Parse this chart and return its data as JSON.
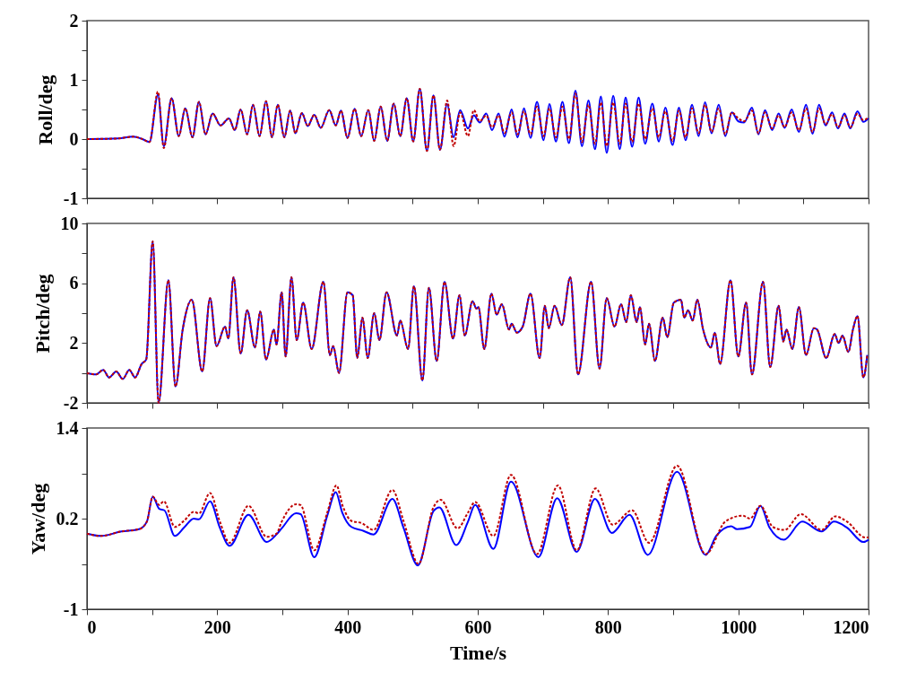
{
  "chart_data": [
    {
      "type": "line",
      "ylabel": "Roll/deg",
      "xlim": [
        0,
        1200
      ],
      "xticks": [
        0,
        100,
        200,
        300,
        400,
        500,
        600,
        700,
        800,
        900,
        1000,
        1100,
        1200
      ],
      "ylim": [
        -1,
        2
      ],
      "yticks": [
        2,
        {
          "value": 1.5,
          "label": null
        },
        1,
        {
          "value": 0.5,
          "label": null
        },
        0,
        {
          "value": -0.5,
          "label": null
        },
        -1
      ],
      "tick_labels": "y",
      "x": [
        0,
        48,
        71,
        85,
        96,
        109,
        118,
        130,
        141,
        151,
        162,
        172,
        182,
        193,
        205,
        218,
        227,
        236,
        246,
        255,
        265,
        275,
        284,
        293,
        303,
        312,
        320,
        330,
        339,
        349,
        359,
        372,
        382,
        390,
        400,
        411,
        421,
        432,
        441,
        451,
        461,
        471,
        481,
        491,
        501,
        511,
        522,
        532,
        542,
        553,
        563,
        573,
        585,
        594,
        603,
        613,
        622,
        632,
        641,
        652,
        661,
        671,
        681,
        691,
        701,
        710,
        720,
        730,
        740,
        750,
        760,
        770,
        780,
        789,
        798,
        808,
        818,
        827,
        837,
        847,
        857,
        868,
        878,
        888,
        899,
        909,
        919,
        929,
        939,
        949,
        959,
        970,
        980,
        990,
        1000,
        1009,
        1021,
        1031,
        1041,
        1052,
        1062,
        1071,
        1082,
        1093,
        1104,
        1114,
        1124,
        1134,
        1144,
        1153,
        1163,
        1172,
        1183,
        1192,
        1200
      ],
      "series": [
        {
          "color": "#0000ff",
          "line_style": "solid",
          "values": [
            0,
            0.01,
            0.04,
            0,
            -0.05,
            0.75,
            -0.12,
            0.69,
            0.05,
            0.52,
            0.03,
            0.63,
            0.08,
            0.43,
            0.23,
            0.35,
            0.15,
            0.5,
            0.08,
            0.58,
            0.05,
            0.64,
            0.03,
            0.58,
            0.03,
            0.48,
            0.1,
            0.44,
            0.22,
            0.41,
            0.19,
            0.49,
            0.23,
            0.48,
            0.02,
            0.51,
            0.05,
            0.49,
            -0.03,
            0.55,
            -0.03,
            0.6,
            0.05,
            0.69,
            -0.04,
            0.85,
            -0.2,
            0.74,
            -0.18,
            0.59,
            0.03,
            0.49,
            0.18,
            0.4,
            0.28,
            0.43,
            0.15,
            0.43,
            0.04,
            0.5,
            0.03,
            0.52,
            0.02,
            0.63,
            -0.02,
            0.59,
            -0.04,
            0.63,
            -0.07,
            0.82,
            -0.12,
            0.65,
            -0.17,
            0.72,
            -0.23,
            0.73,
            -0.17,
            0.7,
            -0.13,
            0.7,
            -0.08,
            0.6,
            -0.04,
            0.53,
            -0.1,
            0.53,
            -0.02,
            0.58,
            0.05,
            0.62,
            0.1,
            0.58,
            0.05,
            0.45,
            0.3,
            0.28,
            0.53,
            0.08,
            0.49,
            0.15,
            0.43,
            0.19,
            0.5,
            0.12,
            0.58,
            0.09,
            0.58,
            0.23,
            0.45,
            0.18,
            0.43,
            0.18,
            0.47,
            0.29,
            0.35
          ]
        },
        {
          "color": "#c00000",
          "line_style": "dashed",
          "values": [
            0,
            0.01,
            0.04,
            0,
            -0.05,
            0.8,
            -0.15,
            0.69,
            0.05,
            0.52,
            0.03,
            0.63,
            0.08,
            0.43,
            0.23,
            0.35,
            0.15,
            0.5,
            0.08,
            0.58,
            0.05,
            0.64,
            0.03,
            0.58,
            0.03,
            0.48,
            0.1,
            0.44,
            0.22,
            0.41,
            0.19,
            0.49,
            0.23,
            0.48,
            0.02,
            0.51,
            0.05,
            0.49,
            -0.03,
            0.55,
            -0.03,
            0.6,
            0.05,
            0.69,
            -0.04,
            0.85,
            -0.2,
            0.74,
            -0.18,
            0.65,
            -0.12,
            0.45,
            0.05,
            0.49,
            0.3,
            0.4,
            0.2,
            0.4,
            0.1,
            0.45,
            0.08,
            0.47,
            0.08,
            0.55,
            0.05,
            0.52,
            0.03,
            0.55,
            0,
            0.77,
            -0.05,
            0.58,
            -0.08,
            0.62,
            -0.12,
            0.62,
            -0.08,
            0.6,
            -0.05,
            0.6,
            0,
            0.52,
            0.03,
            0.47,
            -0.03,
            0.48,
            0.03,
            0.52,
            0.1,
            0.58,
            0.12,
            0.52,
            0.08,
            0.45,
            0.35,
            0.3,
            0.48,
            0.1,
            0.45,
            0.18,
            0.4,
            0.2,
            0.45,
            0.15,
            0.52,
            0.12,
            0.52,
            0.25,
            0.42,
            0.2,
            0.4,
            0.2,
            0.43,
            0.32,
            0.37
          ]
        }
      ]
    },
    {
      "type": "line",
      "ylabel": "Pitch/deg",
      "xlim": [
        0,
        1200
      ],
      "xticks": [
        0,
        100,
        200,
        300,
        400,
        500,
        600,
        700,
        800,
        900,
        1000,
        1100,
        1200
      ],
      "ylim": [
        -2,
        10
      ],
      "yticks": [
        10,
        {
          "value": 8,
          "label": null
        },
        6,
        {
          "value": 4,
          "label": null
        },
        2,
        {
          "value": 0,
          "label": null
        },
        -2
      ],
      "tick_labels": "y",
      "x": [
        0,
        14,
        25,
        34,
        45,
        55,
        65,
        74,
        84,
        91,
        101,
        110,
        125,
        136,
        147,
        161,
        177,
        189,
        199,
        212,
        217,
        225,
        236,
        246,
        258,
        266,
        275,
        287,
        291,
        299,
        305,
        314,
        322,
        332,
        345,
        363,
        373,
        378,
        387,
        400,
        408,
        415,
        423,
        431,
        441,
        449,
        460,
        476,
        481,
        493,
        502,
        515,
        525,
        537,
        549,
        562,
        572,
        580,
        592,
        598,
        601,
        610,
        621,
        629,
        637,
        648,
        652,
        660,
        669,
        681,
        695,
        703,
        709,
        718,
        729,
        742,
        754,
        774,
        787,
        798,
        810,
        820,
        828,
        835,
        844,
        849,
        857,
        863,
        872,
        884,
        891,
        901,
        912,
        917,
        923,
        930,
        937,
        946,
        958,
        964,
        972,
        988,
        1000,
        1012,
        1021,
        1038,
        1049,
        1062,
        1069,
        1074,
        1083,
        1093,
        1104,
        1116,
        1121,
        1135,
        1148,
        1154,
        1160,
        1169,
        1176,
        1183,
        1192,
        1198
      ],
      "series": [
        {
          "color": "#0000ff",
          "line_style": "solid",
          "values": [
            0,
            -0.1,
            0.2,
            -0.3,
            0.1,
            -0.4,
            0.2,
            -0.3,
            0.6,
            0.9,
            8.8,
            -2.0,
            6.2,
            -0.9,
            2.9,
            4.9,
            0.1,
            5.0,
            1.8,
            3.1,
            2.3,
            6.4,
            1.3,
            4.2,
            1.7,
            4.1,
            0.9,
            2.9,
            1.9,
            5.4,
            1.1,
            6.4,
            2.2,
            4.7,
            1.6,
            6.1,
            1.2,
            1.8,
            0.0,
            5.4,
            5.2,
            1.0,
            3.7,
            1.0,
            4.0,
            2.2,
            5.4,
            2.5,
            3.5,
            1.6,
            5.8,
            -0.5,
            5.7,
            0.8,
            6.1,
            2.3,
            5.2,
            2.5,
            4.8,
            4.3,
            4.4,
            1.6,
            5.3,
            3.9,
            4.6,
            2.9,
            3.3,
            2.7,
            3.1,
            5.3,
            1.0,
            4.5,
            3.0,
            4.5,
            3.2,
            6.4,
            -0.1,
            6.1,
            0.3,
            5.0,
            3.1,
            4.6,
            3.4,
            5.2,
            3.4,
            4.4,
            1.9,
            3.3,
            0.8,
            3.7,
            2.4,
            4.7,
            4.9,
            3.7,
            4.2,
            3.5,
            4.9,
            2.9,
            1.7,
            2.7,
            0.6,
            6.2,
            1.1,
            4.7,
            -0.1,
            6.1,
            0.4,
            4.5,
            2.1,
            2.9,
            1.6,
            4.4,
            1.2,
            3.0,
            2.9,
            1.0,
            2.6,
            2.0,
            2.5,
            1.4,
            2.9,
            3.8,
            -0.3,
            1.2
          ]
        },
        {
          "color": "#c00000",
          "line_style": "dashed",
          "values": [
            0,
            -0.1,
            0.2,
            -0.3,
            0.1,
            -0.4,
            0.2,
            -0.3,
            0.6,
            0.9,
            8.8,
            -2.0,
            6.2,
            -0.9,
            2.9,
            4.9,
            0.1,
            5.0,
            1.8,
            3.1,
            2.3,
            6.4,
            1.3,
            4.2,
            1.7,
            4.1,
            0.9,
            2.9,
            1.9,
            5.4,
            1.1,
            6.4,
            2.2,
            4.7,
            1.6,
            6.1,
            1.2,
            1.8,
            0.0,
            5.4,
            5.2,
            1.0,
            3.7,
            1.0,
            4.0,
            2.2,
            5.4,
            2.5,
            3.5,
            1.6,
            5.8,
            -0.5,
            5.7,
            0.8,
            6.1,
            2.3,
            5.2,
            2.5,
            4.8,
            4.3,
            4.4,
            1.6,
            5.3,
            3.9,
            4.6,
            2.9,
            3.3,
            2.7,
            3.1,
            5.3,
            1.0,
            4.5,
            3.0,
            4.5,
            3.2,
            6.4,
            -0.1,
            6.1,
            0.3,
            5.0,
            3.1,
            4.6,
            3.4,
            5.2,
            3.4,
            4.4,
            1.9,
            3.3,
            0.8,
            3.7,
            2.4,
            4.7,
            4.9,
            3.7,
            4.2,
            3.5,
            4.9,
            2.9,
            1.7,
            2.7,
            0.6,
            6.2,
            1.1,
            4.7,
            -0.1,
            6.1,
            0.4,
            4.5,
            2.1,
            2.9,
            1.6,
            4.4,
            1.2,
            3.0,
            2.9,
            1.0,
            2.6,
            2.0,
            2.5,
            1.4,
            2.9,
            3.8,
            -0.3,
            1.2
          ]
        }
      ]
    },
    {
      "type": "line",
      "xlabel": "Time/s",
      "ylabel": "Yaw/deg",
      "xlim": [
        0,
        1200
      ],
      "xticks": [
        0,
        {
          "value": 100,
          "label": null
        },
        200,
        {
          "value": 300,
          "label": null
        },
        400,
        {
          "value": 500,
          "label": null
        },
        600,
        {
          "value": 700,
          "label": null
        },
        800,
        {
          "value": 900,
          "label": null
        },
        1000,
        {
          "value": 1100,
          "label": null
        },
        1200
      ],
      "ylim": [
        -1,
        1.4
      ],
      "yticks": [
        1.4,
        {
          "value": 0.8,
          "label": null
        },
        0.2,
        {
          "value": -0.4,
          "label": null
        },
        -1
      ],
      "series": [
        {
          "color": "#0000ff",
          "line_style": "solid",
          "x": [
            0,
            21,
            53,
            80,
            92,
            101,
            111,
            119,
            135,
            149,
            164,
            172,
            189,
            204,
            219,
            248,
            276,
            291,
            299,
            321,
            328,
            349,
            369,
            382,
            392,
            406,
            424,
            440,
            469,
            486,
            508,
            532,
            541,
            567,
            585,
            596,
            624,
            651,
            693,
            722,
            752,
            780,
            806,
            833,
            861,
            906,
            950,
            966,
            989,
            998,
            1018,
            1034,
            1048,
            1070,
            1098,
            1128,
            1147,
            1167,
            1192,
            1200
          ],
          "values": [
            0.0,
            -0.03,
            0.03,
            0.06,
            0.16,
            0.49,
            0.33,
            0.31,
            -0.03,
            0.08,
            0.2,
            0.19,
            0.43,
            0.08,
            -0.16,
            0.25,
            -0.11,
            -0.01,
            0.07,
            0.27,
            0.26,
            -0.31,
            0.24,
            0.55,
            0.28,
            0.09,
            0.04,
            -0.01,
            0.46,
            0.08,
            -0.42,
            0.3,
            0.35,
            -0.15,
            0.16,
            0.38,
            -0.2,
            0.69,
            -0.31,
            0.47,
            -0.24,
            0.46,
            0.01,
            0.25,
            -0.28,
            0.82,
            -0.28,
            -0.03,
            0.1,
            0.06,
            0.09,
            0.37,
            0.08,
            -0.08,
            0.16,
            0.03,
            0.16,
            0.08,
            -0.11,
            -0.08
          ]
        },
        {
          "color": "#c00000",
          "line_style": "dashed",
          "x": [
            0,
            21,
            53,
            80,
            92,
            101,
            111,
            118,
            135,
            149,
            164,
            172,
            189,
            204,
            219,
            248,
            276,
            291,
            299,
            321,
            328,
            349,
            369,
            383,
            393,
            406,
            422,
            440,
            469,
            486,
            509,
            532,
            543,
            569,
            585,
            596,
            624,
            651,
            691,
            723,
            752,
            781,
            807,
            837,
            863,
            906,
            950,
            980,
            1007,
            1018,
            1034,
            1053,
            1071,
            1096,
            1128,
            1149,
            1167,
            1195,
            1200
          ],
          "values": [
            0.0,
            -0.03,
            0.03,
            0.06,
            0.16,
            0.49,
            0.38,
            0.43,
            0.09,
            0.17,
            0.29,
            0.27,
            0.54,
            0.16,
            -0.12,
            0.37,
            -0.04,
            0.0,
            0.16,
            0.39,
            0.38,
            -0.22,
            0.28,
            0.64,
            0.36,
            0.17,
            0.14,
            0.05,
            0.58,
            0.17,
            -0.4,
            0.35,
            0.45,
            0.07,
            0.28,
            0.42,
            -0.03,
            0.78,
            -0.27,
            0.64,
            -0.22,
            0.6,
            0.12,
            0.31,
            -0.12,
            0.9,
            -0.27,
            0.16,
            0.24,
            0.2,
            0.37,
            0.09,
            0.05,
            0.26,
            0.05,
            0.23,
            0.16,
            -0.05,
            -0.05
          ]
        }
      ]
    }
  ]
}
